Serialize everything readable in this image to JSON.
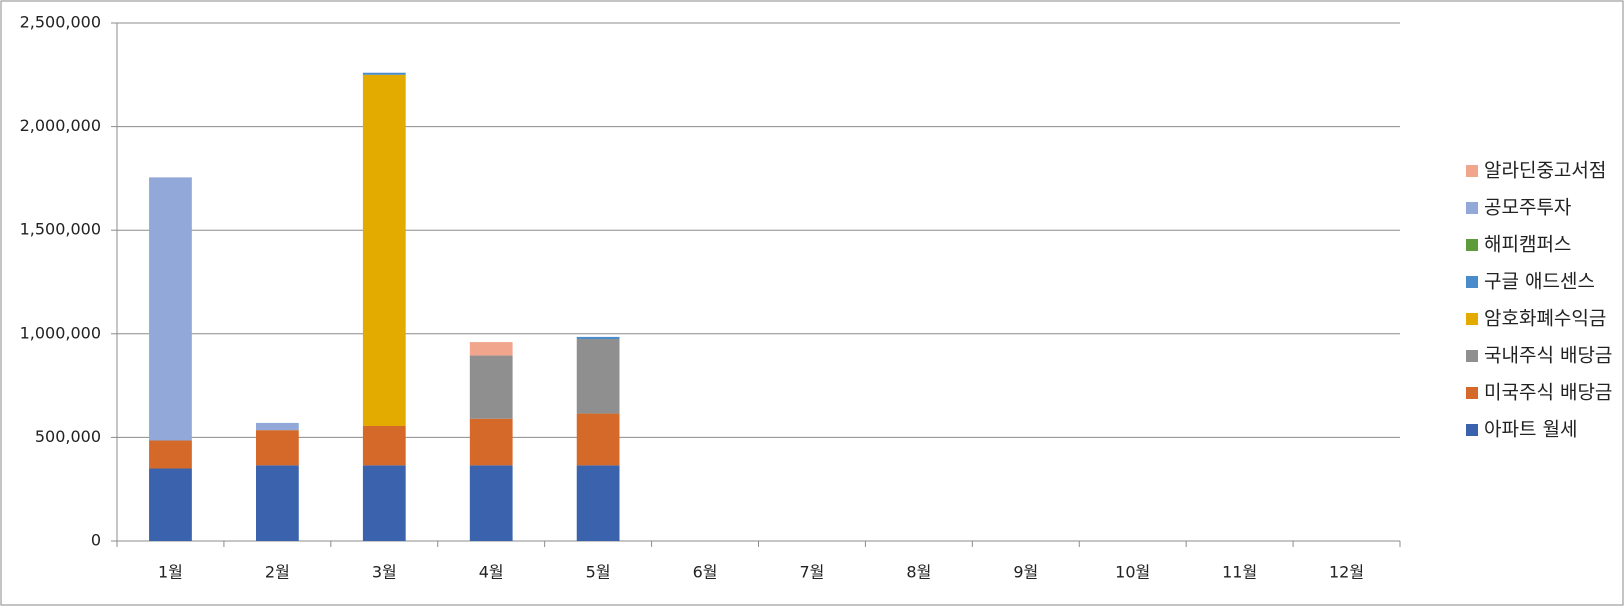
{
  "chart_data": {
    "type": "bar",
    "stacked": true,
    "categories": [
      "1월",
      "2월",
      "3월",
      "4월",
      "5월",
      "6월",
      "7월",
      "8월",
      "9월",
      "10월",
      "11월",
      "12월"
    ],
    "series": [
      {
        "name": "아파트 월세",
        "color": "#3a62ad",
        "values": [
          350000,
          365000,
          365000,
          365000,
          365000,
          null,
          null,
          null,
          null,
          null,
          null,
          null
        ]
      },
      {
        "name": "미국주식 배당금",
        "color": "#d4692a",
        "values": [
          135000,
          170000,
          190000,
          225000,
          250000,
          null,
          null,
          null,
          null,
          null,
          null,
          null
        ]
      },
      {
        "name": "국내주식 배당금",
        "color": "#8f8f8f",
        "values": [
          null,
          null,
          null,
          305000,
          360000,
          null,
          null,
          null,
          null,
          null,
          null,
          null
        ]
      },
      {
        "name": "암호화폐수익금",
        "color": "#e3aa00",
        "values": [
          null,
          null,
          1695000,
          null,
          null,
          null,
          null,
          null,
          null,
          null,
          null,
          null
        ]
      },
      {
        "name": "구글 애드센스",
        "color": "#4a8ccb",
        "values": [
          null,
          null,
          10000,
          null,
          10000,
          null,
          null,
          null,
          null,
          null,
          null,
          null
        ]
      },
      {
        "name": "해피캠퍼스",
        "color": "#5e9b3a",
        "values": [
          null,
          null,
          null,
          null,
          null,
          null,
          null,
          null,
          null,
          null,
          null,
          null
        ]
      },
      {
        "name": "공모주투자",
        "color": "#92a8d8",
        "values": [
          1270000,
          35000,
          null,
          null,
          null,
          null,
          null,
          null,
          null,
          null,
          null,
          null
        ]
      },
      {
        "name": "알라딘중고서점",
        "color": "#f0a58c",
        "values": [
          null,
          null,
          null,
          65000,
          null,
          null,
          null,
          null,
          null,
          null,
          null,
          null
        ]
      }
    ],
    "ylim": [
      0,
      2500000
    ],
    "yticks": [
      0,
      {
        "value": 500000,
        "label": "500,000"
      },
      {
        "value": 1000000,
        "label": "1,000,000"
      },
      {
        "value": 1500000,
        "label": "1,500,000"
      },
      {
        "value": 2000000,
        "label": "2,000,000"
      },
      {
        "value": 2500000,
        "label": "2,500,000"
      }
    ],
    "grid": true,
    "legend": "right"
  }
}
